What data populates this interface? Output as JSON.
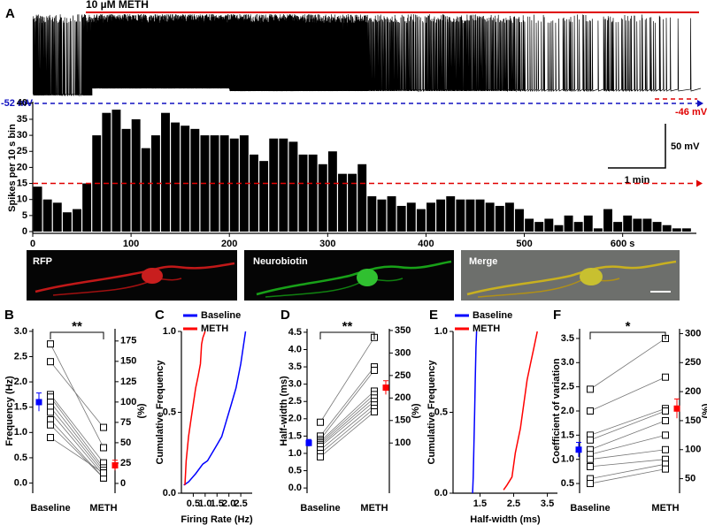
{
  "chart_data": [
    {
      "type": "histogram",
      "panel": "A",
      "ylabel": "Spikes per 10 s bin",
      "annotations": {
        "drug": "10 µM METH",
        "baseline_potential": "-52 mV",
        "meth_potential": "-46 mV",
        "scale_voltage": "50 mV",
        "scale_time": "1 min"
      },
      "bins": [
        0,
        10,
        20,
        30,
        40,
        50,
        60,
        70,
        80,
        90,
        100,
        110,
        120,
        130,
        140,
        150,
        160,
        170,
        180,
        190,
        200,
        210,
        220,
        230,
        240,
        250,
        260,
        270,
        280,
        290,
        300,
        310,
        320,
        330,
        340,
        350,
        360,
        370,
        380,
        390,
        400,
        410,
        420,
        430,
        440,
        450,
        460,
        470,
        480,
        490,
        500,
        510,
        520,
        530,
        540,
        550,
        560,
        570,
        580,
        590,
        600,
        610,
        620,
        630,
        640,
        650,
        660,
        670
      ],
      "values": [
        14,
        10,
        9,
        6,
        7,
        15,
        30,
        37,
        38,
        32,
        35,
        26,
        30,
        37,
        34,
        33,
        32,
        30,
        30,
        30,
        29,
        30,
        24,
        22,
        29,
        29,
        28,
        24,
        24,
        21,
        25,
        18,
        18,
        21,
        11,
        10,
        11,
        8,
        9,
        7,
        9,
        10,
        11,
        10,
        10,
        10,
        9,
        8,
        9,
        7,
        4,
        3,
        4,
        2,
        5,
        3,
        5,
        1,
        7,
        3,
        5,
        4,
        4,
        3,
        2,
        1,
        1
      ],
      "color": "#000000",
      "xlim": [
        0,
        675
      ],
      "xticks": [
        0,
        100,
        200,
        300,
        400,
        500,
        {
          "value": 600,
          "label": "600 s"
        }
      ],
      "ylim": [
        0,
        40.5
      ],
      "yticks": [
        0,
        5,
        10,
        15,
        20,
        25,
        30,
        35,
        40
      ],
      "hline": {
        "value": 15,
        "color": "#e00000"
      }
    },
    {
      "type": "paired",
      "panel": "B",
      "ylabel": "Frequency (Hz)",
      "y2label": "(%)",
      "categories": [
        "Baseline",
        "METH"
      ],
      "ylim": [
        -0.2,
        3.05
      ],
      "yticks": [
        {
          "value": 0,
          "label": "0.0"
        },
        0.5,
        {
          "value": 1,
          "label": "1.0"
        },
        1.5,
        {
          "value": 2,
          "label": "2.0"
        },
        2.5,
        {
          "value": 3,
          "label": "3.0"
        }
      ],
      "y2lim": [
        -12,
        190
      ],
      "y2ticks": [
        0,
        25,
        50,
        75,
        100,
        125,
        150,
        175
      ],
      "points": [
        [
          2.75,
          2.4,
          1.75,
          1.7,
          1.6,
          1.5,
          1.4,
          1.25,
          1.15,
          0.9
        ],
        [
          0.7,
          1.1,
          0.4,
          0.3,
          0.25,
          0.2,
          0.15,
          0.1,
          0.1,
          0.2
        ]
      ],
      "mean": [
        1.6,
        0.35
      ],
      "sem": [
        0.18,
        0.1
      ],
      "colors": [
        "#0000ff",
        "#ff0000"
      ],
      "significance": "**"
    },
    {
      "type": "cumulative",
      "panel": "C",
      "xlabel": "Firing Rate (Hz)",
      "ylabel": "Cumulative Frequency",
      "xlim": [
        0,
        2.98
      ],
      "xticks": [
        0.5,
        {
          "value": 1,
          "label": "1.0"
        },
        1.5,
        {
          "value": 2,
          "label": "2.0"
        },
        2.5
      ],
      "ylim": [
        0,
        1
      ],
      "yticks": [
        {
          "value": 0,
          "label": "0.0"
        },
        0.5,
        {
          "value": 1,
          "label": "1.0"
        }
      ],
      "legend": "top",
      "series": [
        {
          "name": "Baseline",
          "color": "#0000ff",
          "x": [
            0.1,
            0.3,
            0.6,
            0.9,
            1.1,
            1.3,
            1.5,
            1.7,
            1.9,
            2.1,
            2.3,
            2.5,
            2.7
          ],
          "values": [
            0.05,
            0.07,
            0.12,
            0.18,
            0.2,
            0.25,
            0.3,
            0.35,
            0.45,
            0.55,
            0.65,
            0.8,
            1.0
          ]
        },
        {
          "name": "METH",
          "color": "#ff0000",
          "x": [
            0.15,
            0.2,
            0.3,
            0.4,
            0.5,
            0.6,
            0.7,
            0.8,
            0.85,
            0.9,
            1.0
          ],
          "values": [
            0.05,
            0.2,
            0.35,
            0.45,
            0.55,
            0.65,
            0.72,
            0.8,
            0.92,
            0.96,
            1.0
          ]
        }
      ]
    },
    {
      "type": "paired",
      "panel": "D",
      "ylabel": "Half-width (ms)",
      "y2label": "(%)",
      "categories": [
        "Baseline",
        "METH"
      ],
      "ylim": [
        -0.15,
        4.6
      ],
      "yticks": [
        {
          "value": 0,
          "label": "0.0"
        },
        0.5,
        {
          "value": 1,
          "label": "1.0"
        },
        1.5,
        {
          "value": 2,
          "label": "2.0"
        },
        2.5,
        {
          "value": 3,
          "label": "3.0"
        },
        3.5,
        {
          "value": 4,
          "label": "4.0"
        },
        4.5
      ],
      "y2lim": [
        -11.5,
        353.8
      ],
      "y2ticks": [
        100,
        150,
        200,
        250,
        300,
        350
      ],
      "points": [
        [
          1.9,
          1.5,
          1.4,
          1.35,
          1.3,
          1.25,
          1.2,
          1.1,
          1.0,
          0.9
        ],
        [
          4.35,
          3.5,
          3.4,
          2.8,
          2.7,
          2.6,
          2.5,
          2.4,
          2.3,
          2.2
        ]
      ],
      "mean": [
        1.3,
        2.9
      ],
      "sem": [
        0.1,
        0.2
      ],
      "colors": [
        "#0000ff",
        "#ff0000"
      ],
      "significance": "**"
    },
    {
      "type": "cumulative",
      "panel": "E",
      "xlabel": "Half-width (ms)",
      "ylabel": "Cumulative Frequency",
      "xlim": [
        0.7,
        3.8
      ],
      "xticks": [
        1.5,
        2.5,
        3.5
      ],
      "ylim": [
        0,
        1
      ],
      "yticks": [
        {
          "value": 0,
          "label": "0.0"
        },
        0.5,
        {
          "value": 1,
          "label": "1.0"
        }
      ],
      "legend": "top",
      "series": [
        {
          "name": "Baseline",
          "color": "#0000ff",
          "x": [
            1.28,
            1.3,
            1.32,
            1.34,
            1.36,
            1.38,
            1.4
          ],
          "values": [
            0,
            0.1,
            0.3,
            0.5,
            0.7,
            0.9,
            1.0
          ]
        },
        {
          "name": "METH",
          "color": "#ff0000",
          "x": [
            2.2,
            2.3,
            2.45,
            2.55,
            2.7,
            2.8,
            2.9,
            3.0,
            3.1,
            3.2
          ],
          "values": [
            0.02,
            0.05,
            0.1,
            0.25,
            0.4,
            0.55,
            0.7,
            0.8,
            0.9,
            1.0
          ]
        }
      ]
    },
    {
      "type": "paired",
      "panel": "F",
      "ylabel": "Coefficient of variation",
      "y2label": "(%)",
      "categories": [
        "Baseline",
        "METH"
      ],
      "ylim": [
        0.3,
        3.7
      ],
      "yticks": [
        0.5,
        {
          "value": 1,
          "label": "1.0"
        },
        1.5,
        {
          "value": 2,
          "label": "2.0"
        },
        2.5,
        {
          "value": 3,
          "label": "3.0"
        },
        3.5
      ],
      "y2lim": [
        25,
        308.3
      ],
      "y2ticks": [
        50,
        100,
        150,
        200,
        250,
        300
      ],
      "points": [
        [
          2.45,
          2.0,
          1.5,
          1.4,
          1.2,
          1.1,
          1.0,
          0.85,
          0.6,
          0.5
        ],
        [
          3.5,
          2.7,
          2.05,
          2.0,
          1.8,
          1.5,
          1.2,
          1.0,
          0.9,
          0.8
        ]
      ],
      "mean": [
        1.2,
        2.05
      ],
      "sem": [
        0.15,
        0.2
      ],
      "colors": [
        "#0000ff",
        "#ff0000"
      ],
      "significance": "*"
    }
  ],
  "images": {
    "labels": [
      "RFP",
      "Neurobiotin",
      "Merge"
    ]
  }
}
